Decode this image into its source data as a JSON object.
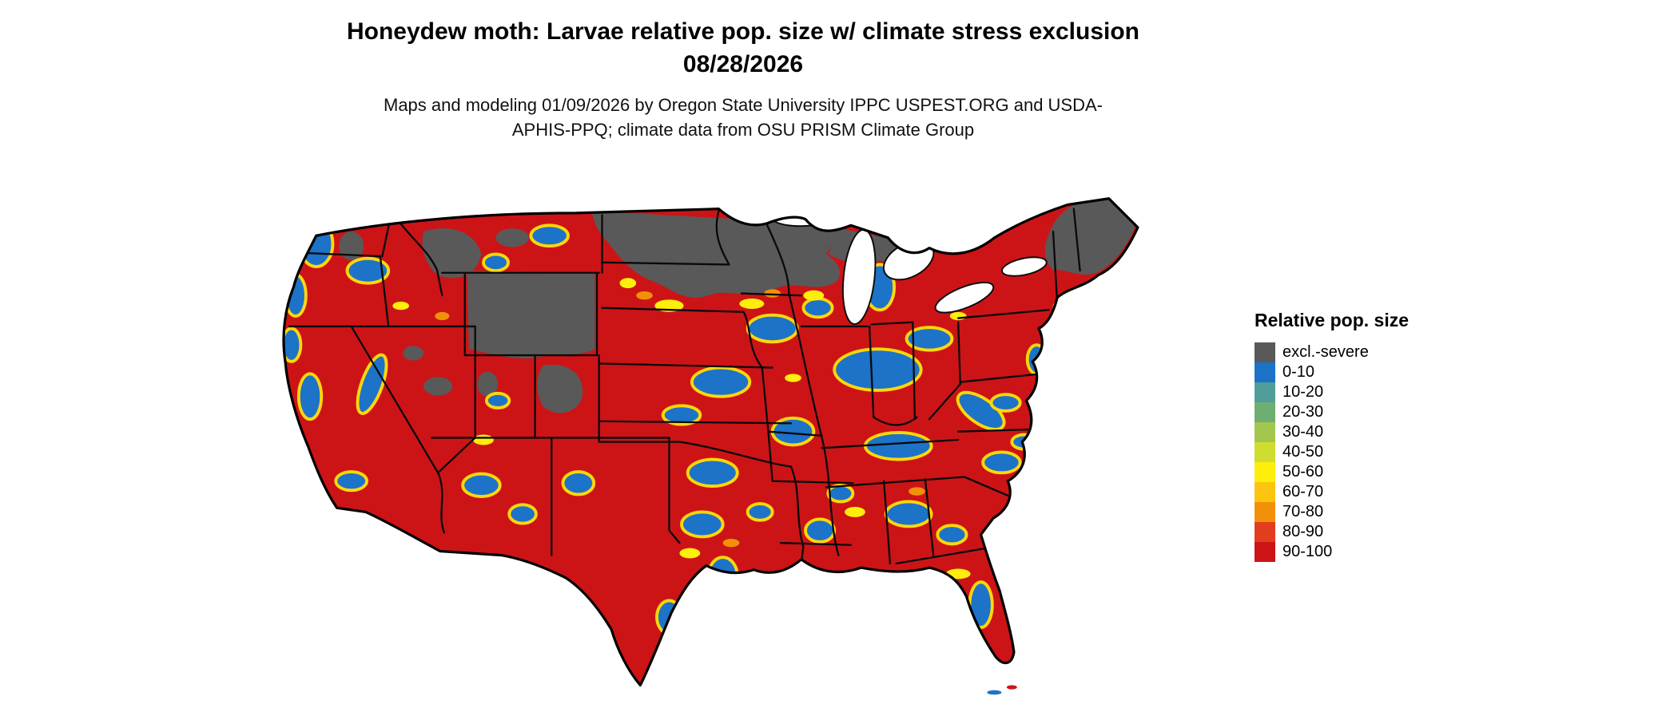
{
  "header": {
    "title": "Honeydew moth: Larvae relative pop. size w/ climate stress exclusion 08/28/2026",
    "subtitle": "Maps and modeling 01/09/2026 by Oregon State University IPPC USPEST.ORG and USDA-APHIS-PPQ; climate data from OSU PRISM Climate Group"
  },
  "map": {
    "region": "Contiguous United States",
    "base_color": "#cc1417",
    "exclusion_color": "#595959",
    "water_color": "#ffffff",
    "boundary_color": "#000000"
  },
  "legend": {
    "title": "Relative pop. size",
    "entries": [
      {
        "label": "excl.-severe",
        "color": "#595959"
      },
      {
        "label": "0-10",
        "color": "#1c73c8"
      },
      {
        "label": "10-20",
        "color": "#4f9e9a"
      },
      {
        "label": "20-30",
        "color": "#6fae71"
      },
      {
        "label": "30-40",
        "color": "#a3c64f"
      },
      {
        "label": "40-50",
        "color": "#cfdd2e"
      },
      {
        "label": "50-60",
        "color": "#fdee0b"
      },
      {
        "label": "60-70",
        "color": "#fdc50f"
      },
      {
        "label": "70-80",
        "color": "#f29109"
      },
      {
        "label": "80-90",
        "color": "#e03e1c"
      },
      {
        "label": "90-100",
        "color": "#cc1417"
      }
    ]
  }
}
